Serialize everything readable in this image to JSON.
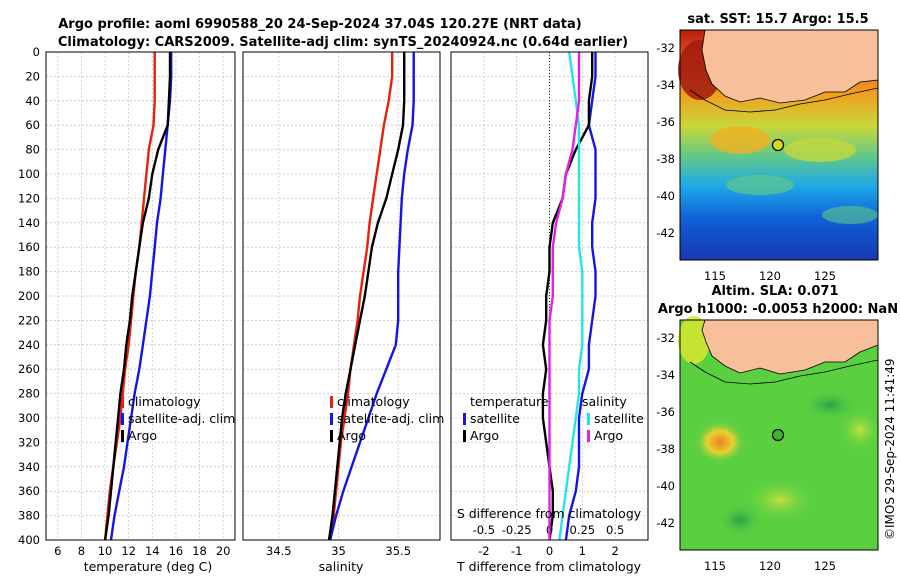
{
  "header": {
    "line1": "Argo profile: aoml 6990588_20 24-Sep-2024 37.04S 120.27E (NRT data)",
    "line2": "Climatology: CARS2009. Satellite-adj clim: synTS_20240924.nc (0.64d earlier)"
  },
  "colors": {
    "climatology": "#e8200c",
    "satellite": "#1414e6",
    "argo": "#000000",
    "sat_salinity": "#22e6e6",
    "argo_salinity": "#e61ee6",
    "land": "#f8c09a"
  },
  "chart_data": [
    {
      "id": "temperature",
      "type": "line",
      "xlabel": "temperature (deg C)",
      "ylabel": "",
      "xlim": [
        5,
        21
      ],
      "ylim": [
        400,
        0
      ],
      "xticks": [
        6,
        8,
        10,
        12,
        14,
        16,
        18,
        20
      ],
      "yticks": [
        0,
        20,
        40,
        60,
        80,
        100,
        120,
        140,
        160,
        180,
        200,
        220,
        240,
        260,
        280,
        300,
        320,
        340,
        360,
        380,
        400
      ],
      "legend": [
        "climatology",
        "satellite-adj. clim",
        "Argo"
      ],
      "series": [
        {
          "name": "climatology",
          "points": [
            [
              14.2,
              0
            ],
            [
              14.2,
              20
            ],
            [
              14.2,
              40
            ],
            [
              14.1,
              60
            ],
            [
              13.7,
              80
            ],
            [
              13.5,
              100
            ],
            [
              13.3,
              120
            ],
            [
              13.1,
              140
            ],
            [
              12.9,
              160
            ],
            [
              12.6,
              180
            ],
            [
              12.4,
              200
            ],
            [
              12.2,
              220
            ],
            [
              12.0,
              240
            ],
            [
              11.7,
              260
            ],
            [
              11.5,
              280
            ],
            [
              11.3,
              300
            ],
            [
              11.0,
              320
            ],
            [
              10.7,
              340
            ],
            [
              10.4,
              360
            ],
            [
              10.2,
              380
            ],
            [
              10.0,
              400
            ]
          ]
        },
        {
          "name": "satellite-adj. clim",
          "points": [
            [
              15.6,
              0
            ],
            [
              15.6,
              20
            ],
            [
              15.5,
              40
            ],
            [
              15.3,
              60
            ],
            [
              15.1,
              80
            ],
            [
              14.9,
              100
            ],
            [
              14.7,
              120
            ],
            [
              14.4,
              140
            ],
            [
              14.2,
              160
            ],
            [
              14.0,
              180
            ],
            [
              13.8,
              200
            ],
            [
              13.5,
              220
            ],
            [
              13.2,
              240
            ],
            [
              12.9,
              260
            ],
            [
              12.5,
              280
            ],
            [
              12.2,
              300
            ],
            [
              11.9,
              320
            ],
            [
              11.6,
              340
            ],
            [
              11.2,
              360
            ],
            [
              10.8,
              380
            ],
            [
              10.5,
              400
            ]
          ]
        },
        {
          "name": "Argo",
          "points": [
            [
              15.5,
              0
            ],
            [
              15.5,
              20
            ],
            [
              15.4,
              40
            ],
            [
              15.3,
              60
            ],
            [
              14.5,
              80
            ],
            [
              14.0,
              100
            ],
            [
              13.7,
              120
            ],
            [
              13.2,
              140
            ],
            [
              12.9,
              160
            ],
            [
              12.6,
              180
            ],
            [
              12.3,
              200
            ],
            [
              12.1,
              220
            ],
            [
              11.8,
              240
            ],
            [
              11.6,
              260
            ],
            [
              11.3,
              280
            ],
            [
              11.1,
              300
            ],
            [
              10.9,
              320
            ],
            [
              10.7,
              340
            ],
            [
              10.5,
              360
            ],
            [
              10.3,
              380
            ],
            [
              10.0,
              400
            ]
          ]
        }
      ]
    },
    {
      "id": "salinity",
      "type": "line",
      "xlabel": "salinity",
      "ylabel": "",
      "xlim": [
        34.2,
        35.85
      ],
      "ylim": [
        400,
        0
      ],
      "xticks": [
        34.5,
        35,
        35.5
      ],
      "yticks": [
        0,
        20,
        40,
        60,
        80,
        100,
        120,
        140,
        160,
        180,
        200,
        220,
        240,
        260,
        280,
        300,
        320,
        340,
        360,
        380,
        400
      ],
      "legend": [
        "climatology",
        "satellite-adj. clim",
        "Argo"
      ],
      "series": [
        {
          "name": "climatology",
          "points": [
            [
              35.45,
              0
            ],
            [
              35.45,
              20
            ],
            [
              35.42,
              40
            ],
            [
              35.38,
              60
            ],
            [
              35.35,
              80
            ],
            [
              35.32,
              100
            ],
            [
              35.29,
              120
            ],
            [
              35.26,
              140
            ],
            [
              35.24,
              160
            ],
            [
              35.21,
              180
            ],
            [
              35.18,
              200
            ],
            [
              35.16,
              220
            ],
            [
              35.13,
              240
            ],
            [
              35.1,
              260
            ],
            [
              35.08,
              280
            ],
            [
              35.05,
              300
            ],
            [
              35.02,
              320
            ],
            [
              35.0,
              340
            ],
            [
              34.98,
              360
            ],
            [
              34.96,
              380
            ],
            [
              34.93,
              400
            ]
          ]
        },
        {
          "name": "satellite-adj. clim",
          "points": [
            [
              35.63,
              0
            ],
            [
              35.63,
              20
            ],
            [
              35.63,
              40
            ],
            [
              35.62,
              60
            ],
            [
              35.58,
              80
            ],
            [
              35.55,
              100
            ],
            [
              35.53,
              120
            ],
            [
              35.52,
              140
            ],
            [
              35.51,
              160
            ],
            [
              35.5,
              180
            ],
            [
              35.5,
              200
            ],
            [
              35.5,
              220
            ],
            [
              35.48,
              240
            ],
            [
              35.4,
              260
            ],
            [
              35.32,
              280
            ],
            [
              35.25,
              300
            ],
            [
              35.18,
              320
            ],
            [
              35.11,
              340
            ],
            [
              35.04,
              360
            ],
            [
              34.98,
              380
            ],
            [
              34.93,
              400
            ]
          ]
        },
        {
          "name": "Argo",
          "points": [
            [
              35.55,
              0
            ],
            [
              35.55,
              20
            ],
            [
              35.55,
              40
            ],
            [
              35.54,
              60
            ],
            [
              35.5,
              80
            ],
            [
              35.45,
              100
            ],
            [
              35.4,
              120
            ],
            [
              35.33,
              140
            ],
            [
              35.28,
              160
            ],
            [
              35.25,
              180
            ],
            [
              35.22,
              200
            ],
            [
              35.18,
              220
            ],
            [
              35.14,
              240
            ],
            [
              35.1,
              260
            ],
            [
              35.06,
              280
            ],
            [
              35.03,
              300
            ],
            [
              35.01,
              320
            ],
            [
              34.99,
              340
            ],
            [
              34.97,
              360
            ],
            [
              34.95,
              380
            ],
            [
              34.92,
              400
            ]
          ]
        }
      ]
    },
    {
      "id": "difference",
      "type": "line",
      "xlabel": "T difference from climatology",
      "toplabel": "S difference from climatology",
      "xlim": [
        -3,
        3
      ],
      "ylim": [
        400,
        0
      ],
      "xticks": [
        -2,
        -1,
        0,
        1,
        2
      ],
      "sticks": [
        "-0.5",
        "-0.25",
        "0",
        "0.25",
        "0.5"
      ],
      "sticks_x": [
        -2,
        -1,
        0,
        1,
        2
      ],
      "legend_t_title": "temperature",
      "legend_s_title": "salinity",
      "legend_t": [
        "satellite",
        "Argo"
      ],
      "legend_s": [
        "satellite",
        "Argo"
      ],
      "series": [
        {
          "name": "T satellite",
          "points": [
            [
              1.4,
              0
            ],
            [
              1.4,
              20
            ],
            [
              1.3,
              40
            ],
            [
              1.2,
              60
            ],
            [
              1.4,
              80
            ],
            [
              1.4,
              100
            ],
            [
              1.4,
              120
            ],
            [
              1.3,
              140
            ],
            [
              1.3,
              160
            ],
            [
              1.4,
              180
            ],
            [
              1.4,
              200
            ],
            [
              1.3,
              220
            ],
            [
              1.2,
              240
            ],
            [
              1.2,
              260
            ],
            [
              1.0,
              280
            ],
            [
              0.9,
              300
            ],
            [
              0.9,
              320
            ],
            [
              0.9,
              340
            ],
            [
              0.8,
              360
            ],
            [
              0.6,
              380
            ],
            [
              0.5,
              400
            ]
          ]
        },
        {
          "name": "T Argo",
          "points": [
            [
              1.3,
              0
            ],
            [
              1.3,
              20
            ],
            [
              1.2,
              40
            ],
            [
              1.2,
              60
            ],
            [
              0.8,
              80
            ],
            [
              0.5,
              100
            ],
            [
              0.4,
              120
            ],
            [
              0.1,
              140
            ],
            [
              0.0,
              160
            ],
            [
              0.0,
              180
            ],
            [
              -0.1,
              200
            ],
            [
              -0.1,
              220
            ],
            [
              -0.2,
              240
            ],
            [
              -0.1,
              260
            ],
            [
              -0.2,
              280
            ],
            [
              -0.2,
              300
            ],
            [
              -0.1,
              320
            ],
            [
              0.0,
              340
            ],
            [
              0.1,
              360
            ],
            [
              0.1,
              380
            ],
            [
              0.0,
              400
            ]
          ]
        },
        {
          "name": "S satellite",
          "points": [
            [
              0.6,
              0
            ],
            [
              0.7,
              20
            ],
            [
              0.8,
              40
            ],
            [
              0.9,
              60
            ],
            [
              0.9,
              80
            ],
            [
              0.9,
              100
            ],
            [
              0.9,
              120
            ],
            [
              0.9,
              140
            ],
            [
              0.9,
              160
            ],
            [
              1.0,
              180
            ],
            [
              1.0,
              200
            ],
            [
              1.0,
              220
            ],
            [
              1.0,
              240
            ],
            [
              0.9,
              260
            ],
            [
              0.9,
              280
            ],
            [
              0.8,
              300
            ],
            [
              0.7,
              320
            ],
            [
              0.6,
              340
            ],
            [
              0.5,
              360
            ],
            [
              0.4,
              380
            ],
            [
              0.3,
              400
            ]
          ]
        },
        {
          "name": "S Argo",
          "points": [
            [
              0.9,
              0
            ],
            [
              0.9,
              20
            ],
            [
              0.9,
              40
            ],
            [
              0.8,
              60
            ],
            [
              0.7,
              80
            ],
            [
              0.5,
              100
            ],
            [
              0.4,
              120
            ],
            [
              0.2,
              140
            ],
            [
              0.1,
              160
            ],
            [
              0.1,
              180
            ],
            [
              0.1,
              200
            ],
            [
              0.0,
              220
            ],
            [
              0.0,
              240
            ],
            [
              0.0,
              260
            ],
            [
              0.0,
              280
            ],
            [
              0.0,
              300
            ],
            [
              0.0,
              320
            ],
            [
              0.0,
              340
            ],
            [
              0.0,
              360
            ],
            [
              0.0,
              380
            ],
            [
              0.0,
              400
            ]
          ]
        }
      ]
    }
  ],
  "maps": {
    "sst": {
      "title": "sat. SST: 15.7 Argo: 15.5",
      "xticks": [
        "115",
        "120",
        "125"
      ],
      "yticks": [
        "-32",
        "-34",
        "-36",
        "-38",
        "-40",
        "-42"
      ],
      "float_lon": 120.27,
      "float_lat": -37.04
    },
    "sla": {
      "title1": "Altim. SLA: 0.071",
      "title2": "Argo h1000: -0.0053 h2000: NaN",
      "xticks": [
        "115",
        "120",
        "125"
      ],
      "yticks": [
        "-32",
        "-34",
        "-36",
        "-38",
        "-40",
        "-42"
      ],
      "float_lon": 120.27,
      "float_lat": -37.04
    }
  },
  "credit": "©IMOS 29-Sep-2024 11:41:49"
}
